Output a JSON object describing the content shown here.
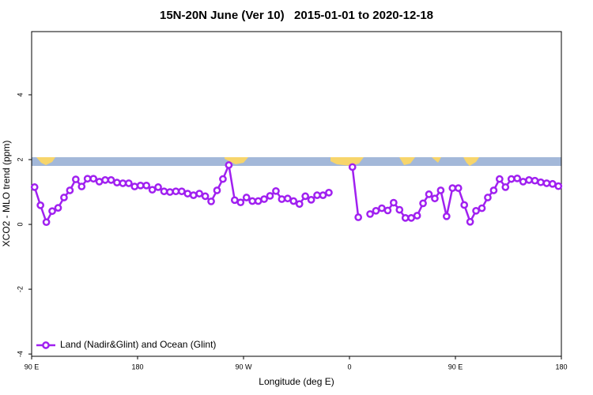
{
  "chart_data": {
    "type": "line",
    "title": "15N-20N June (Ver 10)   2015-01-01 to 2020-12-18",
    "x_label": "Longitude (deg E)",
    "y_label": "XCO2 - MLO trend (ppm)",
    "x": [
      92.5,
      97.5,
      102.5,
      107.5,
      112.5,
      117.5,
      122.5,
      127.5,
      132.5,
      137.5,
      142.5,
      147.5,
      152.5,
      157.5,
      162.5,
      167.5,
      172.5,
      177.5,
      182.5,
      187.5,
      192.5,
      197.5,
      202.5,
      207.5,
      212.5,
      217.5,
      222.5,
      227.5,
      232.5,
      237.5,
      242.5,
      247.5,
      252.5,
      257.5,
      262.5,
      267.5,
      272.5,
      277.5,
      282.5,
      287.5,
      292.5,
      297.5,
      302.5,
      307.5,
      312.5,
      317.5,
      322.5,
      327.5,
      332.5,
      337.5,
      342.5,
      347.5,
      352.5,
      357.5,
      362.5,
      367.5,
      372.5,
      377.5,
      382.5,
      387.5,
      392.5,
      397.5,
      402.5,
      407.5,
      412.5,
      417.5,
      422.5,
      427.5,
      432.5,
      437.5,
      442.5,
      447.5,
      452.5,
      457.5,
      462.5,
      467.5,
      472.5,
      477.5,
      482.5,
      487.5,
      492.5,
      497.5,
      502.5,
      507.5,
      512.5,
      517.5,
      522.5,
      527.5,
      532.5,
      537.5
    ],
    "series": [
      {
        "name": "Land (Nadir&Glint) and Ocean (Glint)",
        "color": "#a020f0",
        "values": [
          1.15,
          0.59,
          0.07,
          0.41,
          0.51,
          0.83,
          1.05,
          1.39,
          1.17,
          1.41,
          1.41,
          1.32,
          1.37,
          1.37,
          1.29,
          1.27,
          1.27,
          1.17,
          1.2,
          1.2,
          1.07,
          1.15,
          1.02,
          1.0,
          1.02,
          1.02,
          0.95,
          0.9,
          0.95,
          0.87,
          0.71,
          1.05,
          1.4,
          1.83,
          0.75,
          0.68,
          0.83,
          0.72,
          0.72,
          0.78,
          0.88,
          1.03,
          0.78,
          0.8,
          0.72,
          0.63,
          0.87,
          0.76,
          0.9,
          0.9,
          0.98,
          null,
          null,
          null,
          1.77,
          0.22,
          null,
          0.32,
          0.42,
          0.5,
          0.43,
          0.67,
          0.45,
          0.2,
          0.2,
          0.27,
          0.65,
          0.93,
          0.8,
          1.05,
          0.25,
          1.12,
          1.12,
          0.6,
          0.08,
          0.42,
          0.5,
          0.83,
          1.05,
          1.4,
          1.15,
          1.4,
          1.42,
          1.32,
          1.37,
          1.35,
          1.3,
          1.27,
          1.25,
          1.18
        ]
      }
    ],
    "xlim": [
      90,
      540
    ],
    "xticks": [
      {
        "value": 90,
        "label": "90 E"
      },
      180,
      {
        "value": 270,
        "label": "90 W"
      },
      {
        "value": 360,
        "label": "0"
      },
      {
        "value": 450,
        "label": "90 E"
      },
      {
        "value": 540,
        "label": "180"
      }
    ],
    "ylim": [
      -4.07,
      5.95
    ],
    "yticks": [
      -4,
      -2,
      0,
      2,
      4
    ],
    "legend": "bottom-left"
  }
}
